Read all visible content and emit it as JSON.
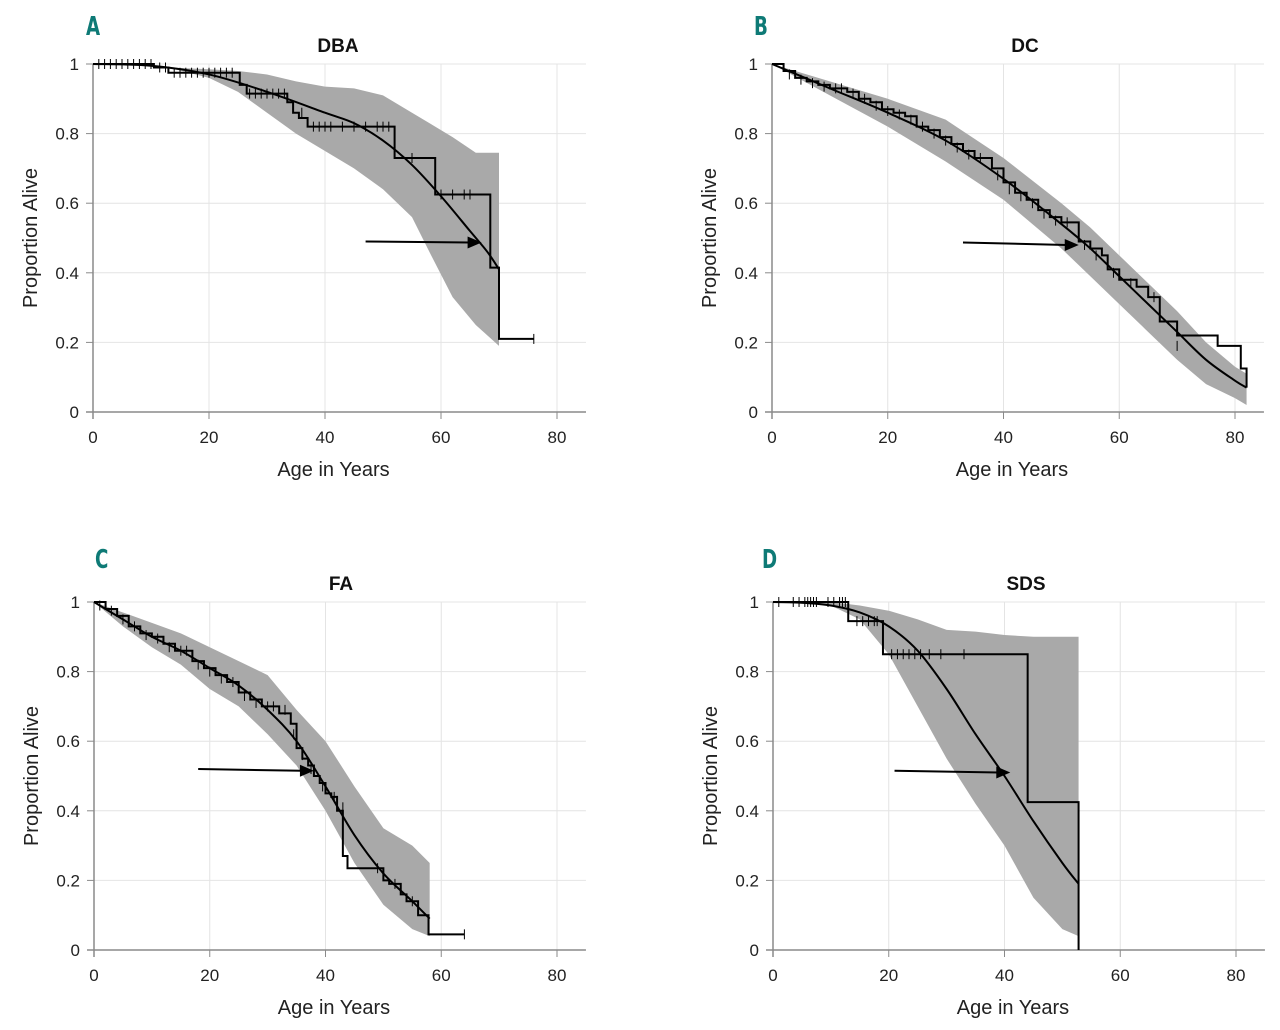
{
  "figure": {
    "panels": [
      {
        "letter": "A",
        "title": "DBA"
      },
      {
        "letter": "B",
        "title": "DC"
      },
      {
        "letter": "C",
        "title": "FA"
      },
      {
        "letter": "D",
        "title": "SDS"
      }
    ]
  },
  "chart_data": [
    {
      "type": "line",
      "panel": "A",
      "title": "DBA",
      "xlabel": "Age in Years",
      "ylabel": "Proportion Alive",
      "xlim": [
        0,
        85
      ],
      "ylim": [
        0,
        1
      ],
      "xticks": [
        0,
        20,
        40,
        60,
        80
      ],
      "yticks": [
        0,
        0.2,
        0.4,
        0.6,
        0.8,
        1
      ],
      "ytick_labels": [
        "0",
        "0.2",
        "0.4",
        "0.6",
        "0.8",
        "1"
      ],
      "grid": true,
      "series": [
        {
          "name": "Kaplan-Meier",
          "kind": "step",
          "x": [
            0,
            10.5,
            13,
            25.3,
            26.5,
            33.5,
            34.5,
            35.5,
            37,
            52,
            59,
            68.5,
            70,
            76
          ],
          "y": [
            1,
            0.99,
            0.975,
            0.94,
            0.915,
            0.89,
            0.86,
            0.845,
            0.82,
            0.73,
            0.625,
            0.415,
            0.21,
            0.21
          ]
        },
        {
          "name": "Censored",
          "kind": "censor",
          "x": [
            1,
            2,
            3,
            4,
            5,
            6,
            7,
            8,
            9,
            10,
            11.5,
            12.5,
            14,
            15,
            16,
            17,
            18,
            19,
            20,
            21,
            22,
            23,
            24,
            27,
            28,
            29,
            30,
            31,
            32,
            33,
            36,
            38,
            39,
            40,
            41,
            43,
            45,
            47,
            49,
            50,
            51,
            55,
            60,
            62,
            64,
            65,
            76
          ],
          "y": [
            1,
            1,
            1,
            1,
            1,
            1,
            1,
            1,
            1,
            1,
            0.99,
            0.99,
            0.975,
            0.975,
            0.975,
            0.975,
            0.975,
            0.975,
            0.975,
            0.975,
            0.975,
            0.975,
            0.975,
            0.915,
            0.915,
            0.915,
            0.915,
            0.915,
            0.915,
            0.915,
            0.86,
            0.82,
            0.82,
            0.82,
            0.82,
            0.82,
            0.82,
            0.82,
            0.82,
            0.82,
            0.82,
            0.73,
            0.625,
            0.625,
            0.625,
            0.625,
            0.21
          ]
        },
        {
          "name": "Parametric fit",
          "kind": "curve",
          "x": [
            0,
            10,
            20,
            30,
            40,
            45,
            50,
            55,
            60,
            65,
            68,
            70
          ],
          "y": [
            1,
            0.995,
            0.97,
            0.92,
            0.86,
            0.83,
            0.78,
            0.71,
            0.62,
            0.52,
            0.46,
            0.41
          ]
        },
        {
          "name": "95% CI upper",
          "kind": "band_upper",
          "x": [
            13,
            20,
            25,
            30,
            35,
            40,
            45,
            50,
            55,
            58,
            62,
            66,
            70
          ],
          "y": [
            0.99,
            0.985,
            0.98,
            0.97,
            0.95,
            0.935,
            0.93,
            0.91,
            0.86,
            0.83,
            0.79,
            0.745,
            0.745
          ]
        },
        {
          "name": "95% CI lower",
          "kind": "band_lower",
          "x": [
            13,
            20,
            25,
            30,
            35,
            40,
            45,
            50,
            55,
            58,
            62,
            66,
            70
          ],
          "y": [
            0.99,
            0.96,
            0.92,
            0.86,
            0.8,
            0.75,
            0.7,
            0.64,
            0.56,
            0.46,
            0.33,
            0.25,
            0.19
          ]
        }
      ],
      "annotations": [
        {
          "type": "arrow",
          "from": [
            47,
            0.49
          ],
          "to": [
            67,
            0.487
          ]
        }
      ]
    },
    {
      "type": "line",
      "panel": "B",
      "title": "DC",
      "xlabel": "Age in Years",
      "ylabel": "Proportion Alive",
      "xlim": [
        0,
        85
      ],
      "ylim": [
        0,
        1
      ],
      "xticks": [
        0,
        20,
        40,
        60,
        80
      ],
      "yticks": [
        0,
        0.2,
        0.4,
        0.6,
        0.8,
        1
      ],
      "ytick_labels": [
        "0",
        "0.2",
        "0.4",
        "0.6",
        "0.8",
        "1"
      ],
      "grid": true,
      "series": [
        {
          "name": "Kaplan-Meier",
          "kind": "step",
          "x": [
            0,
            2,
            4,
            6,
            8,
            10,
            13,
            15,
            17,
            19,
            21,
            23,
            25,
            27,
            29,
            31,
            33,
            35,
            37,
            38,
            40,
            42,
            44,
            46,
            48,
            50,
            52,
            53,
            55,
            57,
            58,
            60,
            63,
            65,
            67,
            70,
            77,
            81,
            82
          ],
          "y": [
            1,
            0.98,
            0.96,
            0.95,
            0.94,
            0.93,
            0.92,
            0.9,
            0.89,
            0.87,
            0.86,
            0.85,
            0.82,
            0.81,
            0.79,
            0.77,
            0.75,
            0.73,
            0.73,
            0.7,
            0.66,
            0.63,
            0.61,
            0.58,
            0.56,
            0.545,
            0.545,
            0.49,
            0.47,
            0.45,
            0.41,
            0.38,
            0.36,
            0.33,
            0.26,
            0.22,
            0.19,
            0.125,
            0.07
          ]
        },
        {
          "name": "Censored",
          "kind": "censor",
          "x": [
            3,
            5,
            7,
            9,
            11,
            12,
            14,
            16,
            18,
            20,
            22,
            24,
            26,
            28,
            30,
            32,
            34,
            36,
            39,
            41,
            43,
            45,
            47,
            49,
            51,
            54,
            56,
            59,
            62,
            66,
            70
          ],
          "y": [
            0.97,
            0.955,
            0.945,
            0.935,
            0.93,
            0.93,
            0.915,
            0.9,
            0.88,
            0.865,
            0.855,
            0.84,
            0.82,
            0.8,
            0.78,
            0.76,
            0.74,
            0.73,
            0.68,
            0.64,
            0.62,
            0.6,
            0.57,
            0.55,
            0.545,
            0.48,
            0.45,
            0.4,
            0.37,
            0.33,
            0.19
          ]
        },
        {
          "name": "Parametric fit",
          "kind": "curve",
          "x": [
            0,
            10,
            20,
            30,
            40,
            50,
            55,
            60,
            65,
            70,
            75,
            80,
            82
          ],
          "y": [
            1,
            0.93,
            0.86,
            0.78,
            0.67,
            0.54,
            0.47,
            0.39,
            0.31,
            0.23,
            0.15,
            0.09,
            0.07
          ]
        },
        {
          "name": "95% CI upper",
          "kind": "band_upper",
          "x": [
            0,
            10,
            20,
            30,
            40,
            50,
            55,
            60,
            65,
            70,
            75,
            80,
            82
          ],
          "y": [
            1,
            0.95,
            0.9,
            0.84,
            0.73,
            0.6,
            0.53,
            0.45,
            0.37,
            0.29,
            0.2,
            0.13,
            0.11
          ]
        },
        {
          "name": "95% CI lower",
          "kind": "band_lower",
          "x": [
            0,
            10,
            20,
            30,
            40,
            50,
            55,
            60,
            65,
            70,
            75,
            80,
            82
          ],
          "y": [
            1,
            0.91,
            0.82,
            0.72,
            0.61,
            0.47,
            0.39,
            0.31,
            0.23,
            0.15,
            0.08,
            0.04,
            0.02
          ]
        }
      ],
      "annotations": [
        {
          "type": "arrow",
          "from": [
            33,
            0.487
          ],
          "to": [
            53,
            0.48
          ]
        }
      ]
    },
    {
      "type": "line",
      "panel": "C",
      "title": "FA",
      "xlabel": "Age in Years",
      "ylabel": "Proportion Alive",
      "xlim": [
        0,
        85
      ],
      "ylim": [
        0,
        1
      ],
      "xticks": [
        0,
        20,
        40,
        60,
        80
      ],
      "yticks": [
        0,
        0.2,
        0.4,
        0.6,
        0.8,
        1
      ],
      "ytick_labels": [
        "0",
        "0.2",
        "0.4",
        "0.6",
        "0.8",
        "1"
      ],
      "grid": true,
      "series": [
        {
          "name": "Kaplan-Meier",
          "kind": "step",
          "x": [
            0,
            2,
            4,
            6,
            8,
            10,
            12,
            14,
            17,
            19,
            21,
            23,
            25,
            27,
            29,
            32,
            34,
            35,
            36,
            37,
            38,
            39,
            40,
            41,
            42,
            43,
            43.8,
            44,
            48,
            50,
            51,
            53,
            54,
            56,
            57.8,
            64
          ],
          "y": [
            1,
            0.98,
            0.96,
            0.93,
            0.91,
            0.9,
            0.88,
            0.86,
            0.83,
            0.81,
            0.79,
            0.77,
            0.74,
            0.72,
            0.7,
            0.68,
            0.65,
            0.58,
            0.55,
            0.53,
            0.5,
            0.48,
            0.45,
            0.44,
            0.4,
            0.27,
            0.235,
            0.235,
            0.235,
            0.2,
            0.19,
            0.16,
            0.14,
            0.1,
            0.045,
            0.045
          ]
        },
        {
          "name": "Censored",
          "kind": "censor",
          "x": [
            1,
            3,
            5,
            7,
            9,
            11,
            13,
            15,
            16,
            18,
            20,
            22,
            24,
            26,
            28,
            30,
            31,
            33,
            34.5,
            36,
            37.5,
            39.5,
            41.5,
            43,
            49,
            52,
            55,
            64
          ],
          "y": [
            0.99,
            0.975,
            0.95,
            0.93,
            0.905,
            0.895,
            0.87,
            0.86,
            0.86,
            0.82,
            0.8,
            0.78,
            0.77,
            0.73,
            0.71,
            0.7,
            0.7,
            0.69,
            0.62,
            0.56,
            0.52,
            0.47,
            0.44,
            0.41,
            0.235,
            0.19,
            0.14,
            0.045
          ]
        },
        {
          "name": "Parametric fit",
          "kind": "curve",
          "x": [
            0,
            5,
            10,
            15,
            20,
            25,
            30,
            35,
            40,
            45,
            50,
            55,
            58
          ],
          "y": [
            1,
            0.95,
            0.9,
            0.86,
            0.81,
            0.76,
            0.69,
            0.6,
            0.47,
            0.33,
            0.22,
            0.14,
            0.09
          ]
        },
        {
          "name": "95% CI upper",
          "kind": "band_upper",
          "x": [
            0,
            5,
            10,
            15,
            20,
            25,
            30,
            35,
            40,
            45,
            50,
            55,
            58
          ],
          "y": [
            1,
            0.97,
            0.94,
            0.91,
            0.87,
            0.83,
            0.79,
            0.69,
            0.6,
            0.47,
            0.35,
            0.3,
            0.25
          ]
        },
        {
          "name": "95% CI lower",
          "kind": "band_lower",
          "x": [
            0,
            5,
            10,
            15,
            20,
            25,
            30,
            35,
            40,
            45,
            50,
            55,
            58
          ],
          "y": [
            1,
            0.93,
            0.87,
            0.82,
            0.75,
            0.7,
            0.62,
            0.53,
            0.4,
            0.25,
            0.13,
            0.06,
            0.04
          ]
        }
      ],
      "annotations": [
        {
          "type": "arrow",
          "from": [
            18,
            0.52
          ],
          "to": [
            38,
            0.515
          ]
        }
      ]
    },
    {
      "type": "line",
      "panel": "D",
      "title": "SDS",
      "xlabel": "Age in Years",
      "ylabel": "Proportion Alive",
      "xlim": [
        0,
        85
      ],
      "ylim": [
        0,
        1
      ],
      "xticks": [
        0,
        20,
        40,
        60,
        80
      ],
      "yticks": [
        0,
        0.2,
        0.4,
        0.6,
        0.8,
        1
      ],
      "ytick_labels": [
        "0",
        "0.2",
        "0.4",
        "0.6",
        "0.8",
        "1"
      ],
      "grid": true,
      "series": [
        {
          "name": "Kaplan-Meier",
          "kind": "step",
          "x": [
            0,
            13,
            19,
            44,
            52.8,
            52.8
          ],
          "y": [
            1,
            0.945,
            0.85,
            0.425,
            0.425,
            0
          ]
        },
        {
          "name": "Censored",
          "kind": "censor",
          "x": [
            1,
            3.5,
            4.5,
            5.5,
            6,
            6.5,
            7,
            7.5,
            9.5,
            10.5,
            11.5,
            12,
            12.5,
            14.5,
            15.5,
            16.5,
            17.5,
            18,
            20.5,
            21.5,
            22.5,
            23.5,
            24.5,
            25.5,
            27,
            29,
            33
          ],
          "y": [
            1,
            1,
            1,
            1,
            1,
            1,
            1,
            1,
            1,
            1,
            1,
            1,
            1,
            0.945,
            0.945,
            0.945,
            0.945,
            0.945,
            0.85,
            0.85,
            0.85,
            0.85,
            0.85,
            0.85,
            0.85,
            0.85,
            0.85
          ]
        },
        {
          "name": "Parametric fit",
          "kind": "curve",
          "x": [
            0,
            5,
            10,
            15,
            20,
            25,
            30,
            35,
            40,
            45,
            50,
            52.8
          ],
          "y": [
            1,
            0.998,
            0.99,
            0.97,
            0.93,
            0.86,
            0.75,
            0.62,
            0.5,
            0.37,
            0.25,
            0.19
          ]
        },
        {
          "name": "95% CI upper",
          "kind": "band_upper",
          "x": [
            0,
            10,
            15,
            20,
            25,
            30,
            35,
            40,
            45,
            50,
            52.8
          ],
          "y": [
            1,
            1,
            0.99,
            0.975,
            0.95,
            0.92,
            0.915,
            0.905,
            0.9,
            0.9,
            0.9
          ]
        },
        {
          "name": "95% CI lower",
          "kind": "band_lower",
          "x": [
            0,
            10,
            15,
            20,
            25,
            30,
            35,
            40,
            45,
            50,
            52.8
          ],
          "y": [
            1,
            0.99,
            0.95,
            0.85,
            0.7,
            0.55,
            0.42,
            0.3,
            0.15,
            0.06,
            0.04
          ]
        }
      ],
      "annotations": [
        {
          "type": "arrow",
          "from": [
            21,
            0.515
          ],
          "to": [
            41,
            0.51
          ]
        }
      ]
    }
  ]
}
